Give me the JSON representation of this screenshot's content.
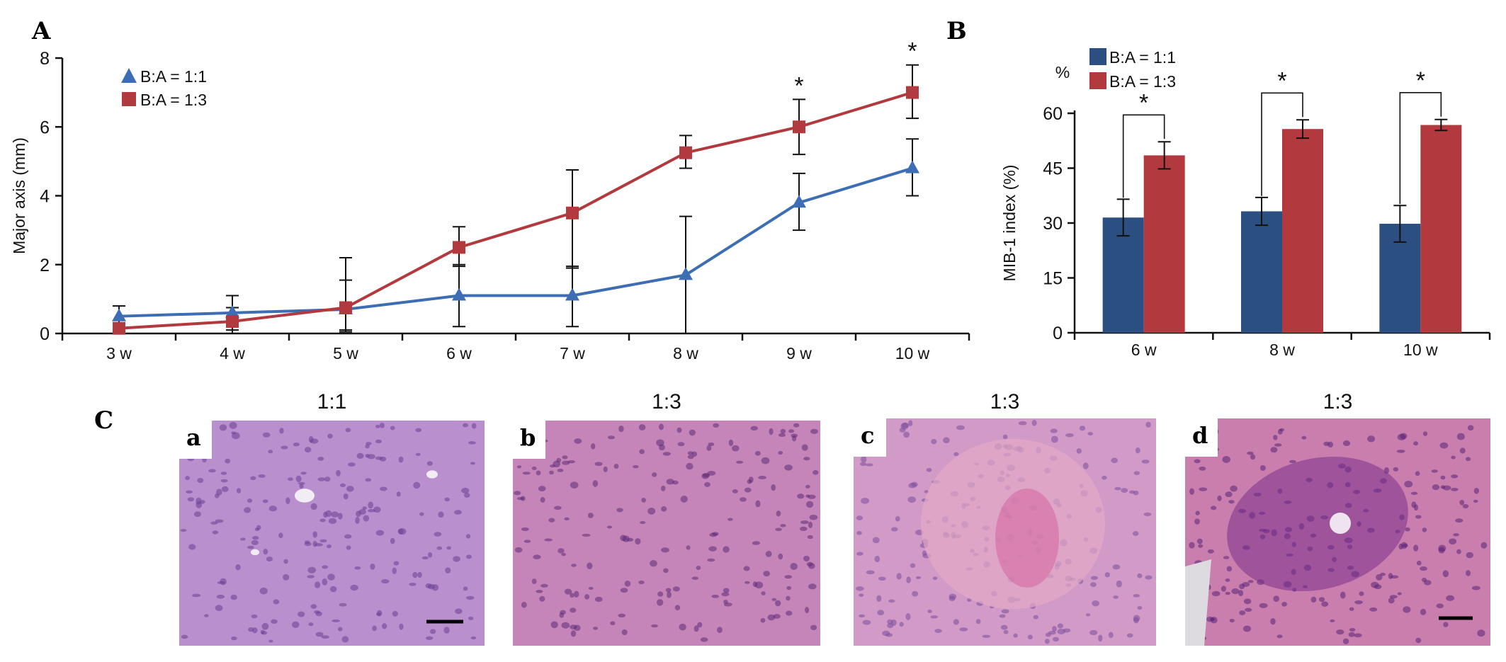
{
  "panels": {
    "A": "A",
    "B": "B",
    "C": "C"
  },
  "chart_data": [
    {
      "id": "A",
      "type": "line",
      "title": "",
      "xlabel": "",
      "ylabel": "Major axis (mm)",
      "categories": [
        "3 w",
        "4 w",
        "5 w",
        "6 w",
        "7 w",
        "8 w",
        "9 w",
        "10 w"
      ],
      "yticks": [
        0,
        2,
        4,
        6,
        8
      ],
      "ylim": [
        0,
        8
      ],
      "grid": false,
      "legend": "top-left",
      "series": [
        {
          "name": "B:A = 1:1",
          "color": "#3d6db3",
          "marker": "triangle",
          "values": [
            0.5,
            0.6,
            0.7,
            1.1,
            1.1,
            1.7,
            3.8,
            4.8
          ],
          "err_plus": [
            0.3,
            0.5,
            1.5,
            0.9,
            0.85,
            1.7,
            0.85,
            0.85
          ],
          "err_minus": [
            0.3,
            0.5,
            0.6,
            0.9,
            0.9,
            1.7,
            0.8,
            0.8
          ]
        },
        {
          "name": "B:A = 1:3",
          "color": "#b23a3e",
          "marker": "square",
          "values": [
            0.15,
            0.35,
            0.75,
            2.5,
            3.5,
            5.25,
            6.0,
            7.0
          ],
          "err_plus": [
            0.15,
            0.4,
            0.8,
            0.6,
            1.25,
            0.5,
            0.8,
            0.8
          ],
          "err_minus": [
            0.15,
            0.35,
            0.7,
            0.55,
            1.6,
            0.45,
            0.8,
            0.75
          ]
        }
      ],
      "significance": [
        {
          "category": "9 w",
          "label": "*"
        },
        {
          "category": "10 w",
          "label": "*"
        }
      ]
    },
    {
      "id": "B",
      "type": "bar",
      "title": "",
      "xlabel": "",
      "ylabel": "MIB-1 index (%)",
      "unit_label": "%",
      "categories": [
        "6 w",
        "8 w",
        "10 w"
      ],
      "yticks": [
        0,
        15,
        30,
        45,
        60
      ],
      "ylim": [
        0,
        60
      ],
      "grid": false,
      "legend": "top-left",
      "series": [
        {
          "name": "B:A = 1:1",
          "color": "#2c4f82",
          "values": [
            31.5,
            33.2,
            29.8
          ],
          "err": [
            5.0,
            3.8,
            5.0
          ]
        },
        {
          "name": "B:A = 1:3",
          "color": "#b23a3e",
          "values": [
            48.5,
            55.7,
            56.8
          ],
          "err": [
            3.7,
            2.5,
            1.5
          ]
        }
      ],
      "significance": [
        {
          "category": "6 w",
          "label": "*"
        },
        {
          "category": "8 w",
          "label": "*"
        },
        {
          "category": "10 w",
          "label": "*"
        }
      ]
    }
  ],
  "micrographs": [
    {
      "letter": "a",
      "title": "1:1",
      "has_scale_bar": true,
      "tone": "#b98fcd",
      "dot": "#6a3f96"
    },
    {
      "letter": "b",
      "title": "1:3",
      "has_scale_bar": false,
      "tone": "#c585b8",
      "dot": "#5c2a78"
    },
    {
      "letter": "c",
      "title": "1:3",
      "has_scale_bar": false,
      "tone": "#d29ac6",
      "dot": "#7a4f9e"
    },
    {
      "letter": "d",
      "title": "1:3",
      "has_scale_bar": true,
      "tone": "#c97eae",
      "dot": "#5a2578"
    }
  ]
}
